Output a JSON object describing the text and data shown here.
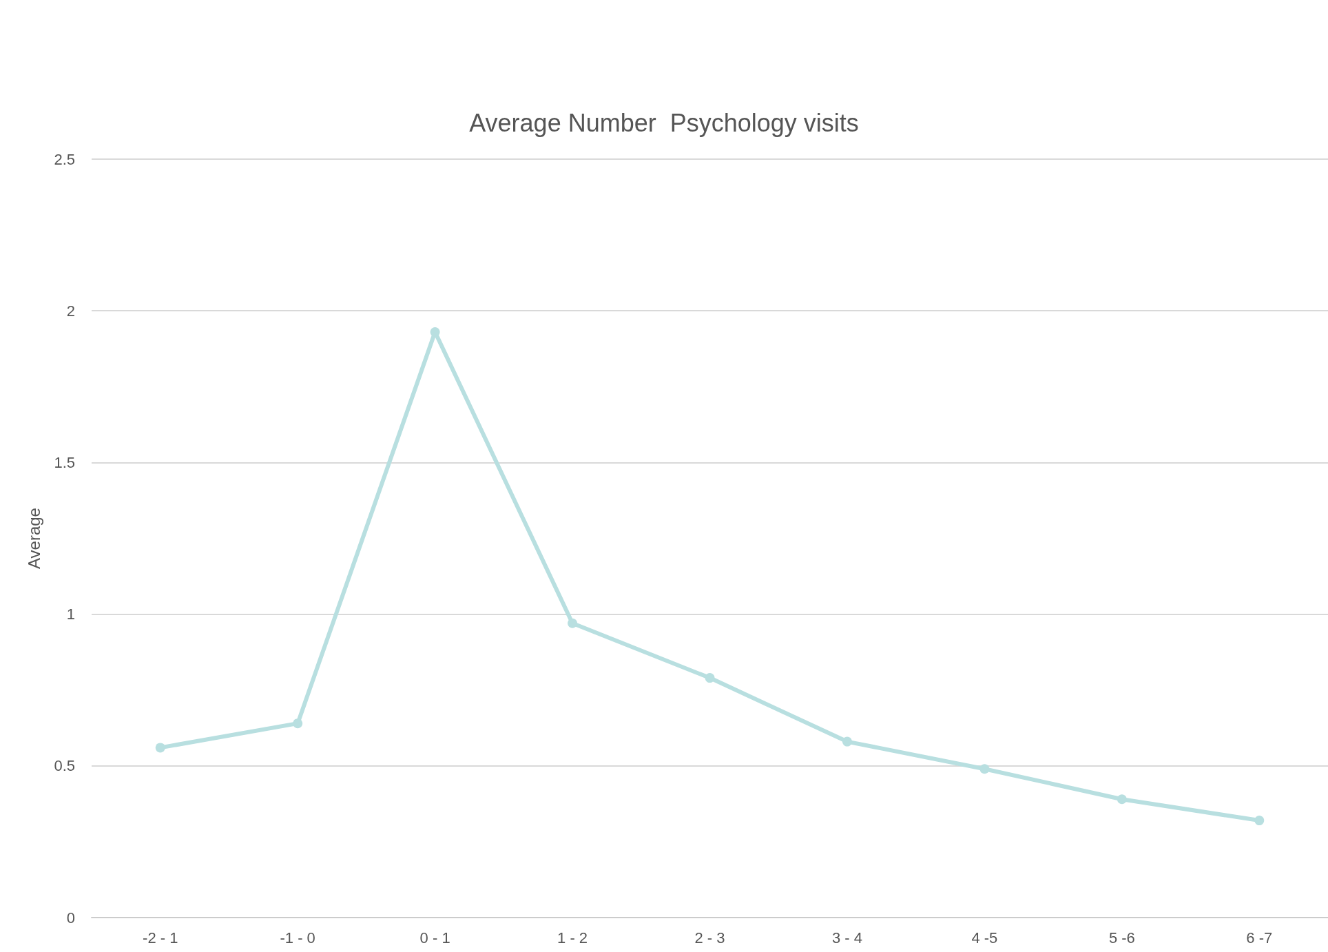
{
  "chart_data": {
    "type": "line",
    "title": "Average Number  Psychology visits",
    "ylabel": "Average",
    "categories": [
      "-2 - 1",
      "-1 - 0",
      "0 - 1",
      "1 - 2",
      "2 - 3",
      "3 - 4",
      "4 -5",
      "5 -6",
      "6 -7"
    ],
    "series": [
      {
        "color": "#b8dfe0",
        "values": [
          0.56,
          0.64,
          1.93,
          0.97,
          0.79,
          0.58,
          0.49,
          0.39,
          0.32
        ]
      }
    ],
    "ylim": [
      0,
      2.5
    ],
    "yticks": [
      0,
      0.5,
      1,
      1.5,
      2,
      2.5
    ],
    "grid": "y",
    "marker": "circle",
    "line_style": "solid"
  }
}
